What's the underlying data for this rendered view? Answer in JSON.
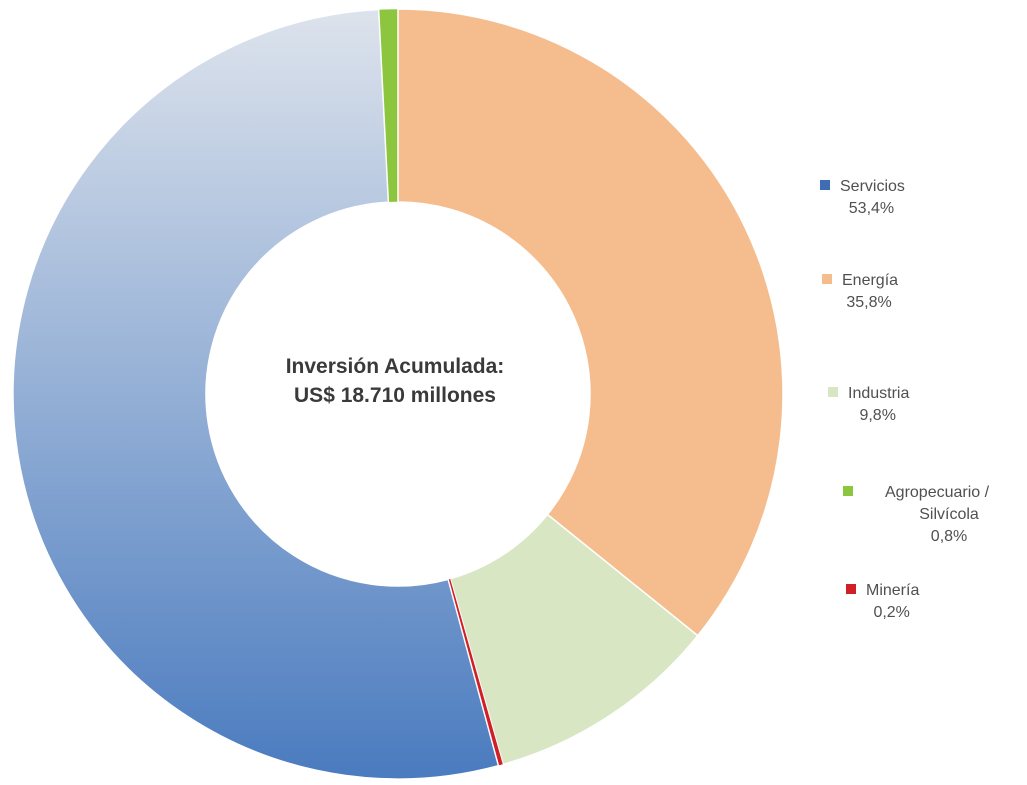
{
  "chart_data": {
    "type": "pie",
    "variant": "donut",
    "center_label": {
      "line1": "Inversión Acumulada:",
      "line2": "US$ 18.710 millones"
    },
    "unit": "%",
    "slices": [
      {
        "name": "Agropecuario / Silvícola",
        "value": 0.8,
        "value_label": "0,8%",
        "color": "#8cc63f"
      },
      {
        "name": "Energía",
        "value": 35.8,
        "value_label": "35,8%",
        "color": "#f5bd8e"
      },
      {
        "name": "Industria",
        "value": 9.8,
        "value_label": "9,8%",
        "color": "#d8e6c3"
      },
      {
        "name": "Minería",
        "value": 0.2,
        "value_label": "0,2%",
        "color": "#d11f26"
      },
      {
        "name": "Servicios",
        "value": 53.4,
        "value_label": "53,4%",
        "color": "#4a7bbf"
      }
    ],
    "legend": [
      {
        "line1": "Servicios",
        "value_label": "53,4%",
        "color": "#3f6db4"
      },
      {
        "line1": "Energía",
        "value_label": "35,8%",
        "color": "#f5bd8e"
      },
      {
        "line1": "Industria",
        "value_label": "9,8%",
        "color": "#d8e6c3"
      },
      {
        "line1": "Agropecuario /",
        "line2": "Silvícola",
        "value_label": "0,8%",
        "color": "#8cc63f"
      },
      {
        "line1": "Minería",
        "value_label": "0,2%",
        "color": "#d11f26"
      }
    ],
    "legend_position": "right",
    "servicios_gradient": [
      "#dde3ec",
      "#4a7bbf"
    ]
  }
}
